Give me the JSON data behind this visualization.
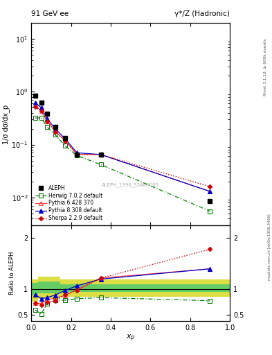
{
  "title_left": "91 GeV ee",
  "title_right": "γ*/Z (Hadronic)",
  "ylabel_main": "1/σ dσ/dx_p",
  "ylabel_ratio": "Ratio to ALEPH",
  "xlabel": "$x_p$",
  "watermark": "ALEPH_1996_S3486095",
  "right_label_top": "Rivet 3.1.10, ≥ 600k events",
  "right_label_bot": "mcplots.cern.ch [arXiv:1306.3436]",
  "xp": [
    0.02,
    0.05,
    0.08,
    0.12,
    0.17,
    0.23,
    0.35,
    0.9
  ],
  "aleph_y": [
    0.85,
    0.62,
    0.38,
    0.22,
    0.135,
    0.065,
    0.065,
    0.0085
  ],
  "aleph_yerr": [
    0.05,
    0.03,
    0.02,
    0.012,
    0.007,
    0.004,
    0.004,
    0.0005
  ],
  "herwig_y": [
    0.32,
    0.32,
    0.215,
    0.155,
    0.095,
    0.062,
    0.042,
    0.0055
  ],
  "pythia6_y": [
    0.55,
    0.44,
    0.28,
    0.18,
    0.12,
    0.065,
    0.065,
    0.013
  ],
  "pythia8_y": [
    0.62,
    0.5,
    0.31,
    0.2,
    0.13,
    0.07,
    0.065,
    0.013
  ],
  "sherpa_y": [
    0.52,
    0.43,
    0.28,
    0.175,
    0.12,
    0.065,
    0.065,
    0.016
  ],
  "herwig_ratio": [
    0.6,
    0.52,
    0.72,
    0.79,
    0.79,
    0.82,
    0.84,
    0.78
  ],
  "pythia6_ratio": [
    0.73,
    0.73,
    0.8,
    0.83,
    0.88,
    1.0,
    1.22,
    1.4
  ],
  "pythia8_ratio": [
    0.9,
    0.82,
    0.84,
    0.89,
    0.98,
    1.07,
    1.2,
    1.4
  ],
  "sherpa_ratio": [
    0.73,
    0.7,
    0.75,
    0.78,
    0.9,
    0.98,
    1.22,
    1.78
  ],
  "band_inner_lo": [
    0.88,
    0.92,
    0.92,
    0.92,
    0.95,
    0.95,
    0.95,
    0.95
  ],
  "band_inner_hi": [
    1.12,
    1.15,
    1.15,
    1.15,
    1.1,
    1.1,
    1.1,
    1.1
  ],
  "band_outer_lo": [
    0.76,
    0.82,
    0.82,
    0.82,
    0.86,
    0.86,
    0.86,
    0.86
  ],
  "band_outer_hi": [
    1.2,
    1.25,
    1.25,
    1.25,
    1.2,
    1.2,
    1.2,
    1.2
  ],
  "x_lo": [
    0.0,
    0.035,
    0.065,
    0.1,
    0.145,
    0.2,
    0.29,
    0.625
  ],
  "x_hi": [
    0.035,
    0.065,
    0.1,
    0.145,
    0.2,
    0.29,
    0.625,
    1.0
  ],
  "color_aleph": "#000000",
  "color_herwig": "#008000",
  "color_pythia6": "#ff4444",
  "color_pythia8": "#0000cc",
  "color_sherpa": "#cc0000",
  "color_band_inner": "#66cc66",
  "color_band_outer": "#dddd44",
  "ylim_main": [
    0.003,
    20
  ],
  "ylim_ratio": [
    0.38,
    2.25
  ],
  "yticks_ratio": [
    0.5,
    1.0,
    2.0
  ]
}
